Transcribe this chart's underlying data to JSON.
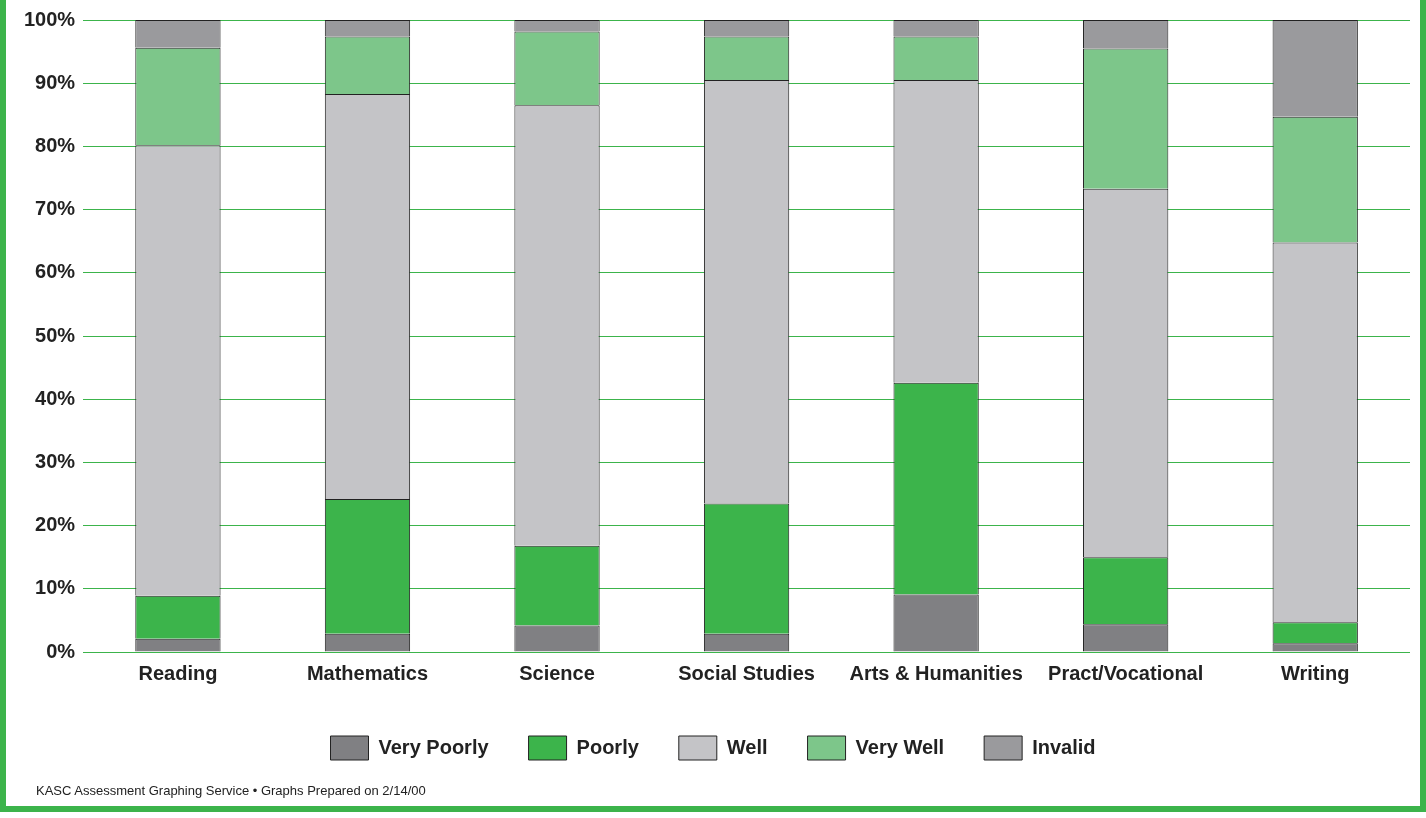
{
  "chart_data": {
    "type": "bar",
    "stacked": true,
    "categories": [
      "Reading",
      "Mathematics",
      "Science",
      "Social Studies",
      "Arts & Humanities",
      "Pract/Vocational",
      "Writing"
    ],
    "series": [
      {
        "name": "Very Poorly",
        "color": "#808083",
        "values": [
          2.1,
          2.9,
          4.2,
          2.9,
          9.1,
          4.4,
          1.4
        ]
      },
      {
        "name": "Poorly",
        "color": "#3cb44b",
        "values": [
          6.8,
          21.3,
          12.6,
          20.6,
          33.5,
          10.6,
          3.3
        ]
      },
      {
        "name": "Well",
        "color": "#c4c4c7",
        "values": [
          71.3,
          64.1,
          69.7,
          67.0,
          47.9,
          58.3,
          60.1
        ]
      },
      {
        "name": "Very Well",
        "color": "#7dc68a",
        "values": [
          15.4,
          9.1,
          11.7,
          6.9,
          6.9,
          22.2,
          19.9
        ]
      },
      {
        "name": "Invalid",
        "color": "#9a9a9d",
        "values": [
          4.4,
          2.6,
          1.8,
          2.6,
          2.6,
          4.5,
          15.3
        ]
      }
    ],
    "ylim": [
      0,
      100
    ],
    "yticks": [
      {
        "value": 0,
        "label": "0%"
      },
      {
        "value": 10,
        "label": "10%"
      },
      {
        "value": 20,
        "label": "20%"
      },
      {
        "value": 30,
        "label": "30%"
      },
      {
        "value": 40,
        "label": "40%"
      },
      {
        "value": 50,
        "label": "50%"
      },
      {
        "value": 60,
        "label": "60%"
      },
      {
        "value": 70,
        "label": "70%"
      },
      {
        "value": 80,
        "label": "80%"
      },
      {
        "value": 90,
        "label": "90%"
      },
      {
        "value": 100,
        "label": "100%"
      }
    ],
    "grid": "y",
    "legend": "bottom",
    "annotations": [
      "KASC Assessment Graphing Service • Graphs Prepared on 2/14/00"
    ]
  }
}
